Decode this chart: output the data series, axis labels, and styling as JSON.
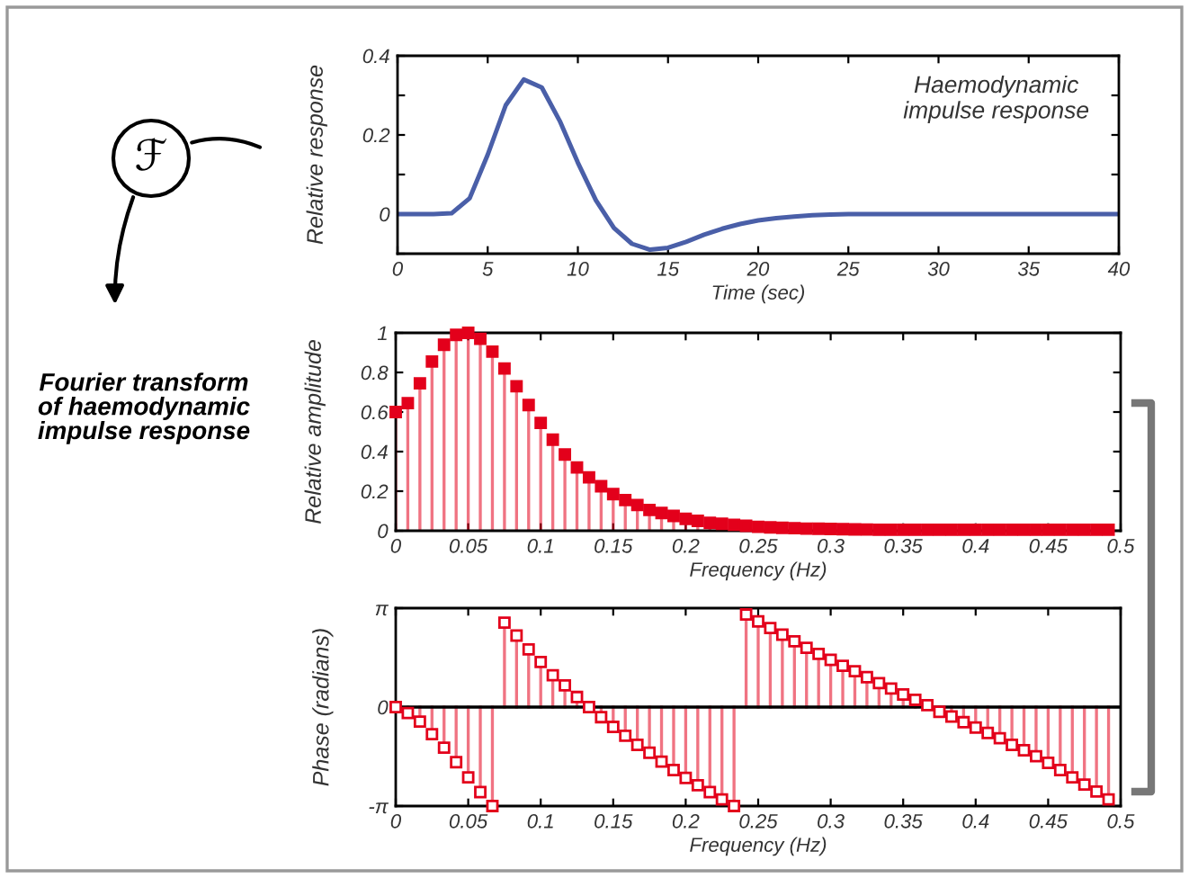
{
  "chart_data": [
    {
      "type": "line",
      "xlabel": "Time (sec)",
      "ylabel": "Relative response",
      "x": [
        0,
        1,
        2,
        3,
        4,
        5,
        6,
        7,
        8,
        9,
        10,
        11,
        12,
        13,
        14,
        15,
        16,
        17,
        18,
        19,
        20,
        21,
        22,
        23,
        24,
        25,
        26,
        28,
        30,
        32,
        34,
        36,
        38,
        40
      ],
      "series": [
        {
          "color": "#4a5fa8",
          "values": [
            0,
            0,
            0,
            0.002,
            0.04,
            0.15,
            0.275,
            0.34,
            0.32,
            0.235,
            0.13,
            0.035,
            -0.035,
            -0.075,
            -0.09,
            -0.085,
            -0.07,
            -0.052,
            -0.037,
            -0.025,
            -0.016,
            -0.01,
            -0.006,
            -0.003,
            -0.001,
            0,
            0,
            0,
            0,
            0,
            0,
            0,
            0,
            0
          ]
        }
      ],
      "xlim": [
        0,
        40
      ],
      "xticks": [
        0,
        5,
        10,
        15,
        20,
        25,
        30,
        35,
        40
      ],
      "ylim": [
        -0.1,
        0.4
      ],
      "yticks": [
        {
          "value": -0.1,
          "label": null
        },
        0,
        {
          "value": 0.1,
          "label": null
        },
        0.2,
        {
          "value": 0.3,
          "label": null
        },
        0.4
      ],
      "annotations": [
        "Haemodynamic\nimpulse response"
      ],
      "grid": false,
      "legend": false,
      "marker": "none",
      "line_style": "solid"
    },
    {
      "type": "lollipop",
      "xlabel": "Frequency (Hz)",
      "ylabel": "Relative amplitude",
      "x": [
        0,
        0.00833,
        0.01667,
        0.025,
        0.03333,
        0.04167,
        0.05,
        0.05833,
        0.06667,
        0.075,
        0.08333,
        0.09167,
        0.1,
        0.10833,
        0.11667,
        0.125,
        0.13333,
        0.14167,
        0.15,
        0.15833,
        0.16667,
        0.175,
        0.18333,
        0.19167,
        0.2,
        0.20833,
        0.21667,
        0.225,
        0.23333,
        0.24167,
        0.25,
        0.25833,
        0.26667,
        0.275,
        0.28333,
        0.29167,
        0.3,
        0.30833,
        0.31667,
        0.325,
        0.33333,
        0.34167,
        0.35,
        0.35833,
        0.36667,
        0.375,
        0.38333,
        0.39167,
        0.4,
        0.40833,
        0.41667,
        0.425,
        0.43333,
        0.44167,
        0.45,
        0.45833,
        0.46667,
        0.475,
        0.48333,
        0.49167
      ],
      "series": [
        {
          "color": "#e3001b",
          "values": [
            0.6,
            0.645,
            0.745,
            0.855,
            0.94,
            0.99,
            1.0,
            0.97,
            0.905,
            0.82,
            0.73,
            0.635,
            0.545,
            0.46,
            0.385,
            0.32,
            0.27,
            0.225,
            0.185,
            0.155,
            0.13,
            0.105,
            0.09,
            0.075,
            0.06,
            0.05,
            0.04,
            0.035,
            0.03,
            0.025,
            0.02,
            0.017,
            0.015,
            0.013,
            0.011,
            0.01,
            0.009,
            0.008,
            0.007,
            0.006,
            0.005,
            0.005,
            0.005,
            0.005,
            0.005,
            0.005,
            0.005,
            0.005,
            0.005,
            0.005,
            0.005,
            0.005,
            0.005,
            0.005,
            0.005,
            0.005,
            0.005,
            0.005,
            0.005,
            0.005
          ]
        }
      ],
      "xlim": [
        0,
        0.5
      ],
      "xticks": [
        0,
        0.05,
        0.1,
        0.15,
        0.2,
        0.25,
        0.3,
        0.35,
        0.4,
        0.45,
        0.5
      ],
      "ylim": [
        0,
        1
      ],
      "yticks": [
        0,
        0.2,
        0.4,
        0.6,
        0.8,
        1
      ],
      "annotations": [
        "ℱ",
        "Fourier transform\nof haemodynamic\nimpulse response"
      ],
      "grid": false,
      "legend": false,
      "marker": "square"
    },
    {
      "type": "lollipop",
      "xlabel": "Frequency (Hz)",
      "ylabel": "Phase (radians)",
      "x": [
        0,
        0.00833,
        0.01667,
        0.025,
        0.03333,
        0.04167,
        0.05,
        0.05833,
        0.06667,
        0.075,
        0.08333,
        0.09167,
        0.1,
        0.10833,
        0.11667,
        0.125,
        0.13333,
        0.14167,
        0.15,
        0.15833,
        0.16667,
        0.175,
        0.18333,
        0.19167,
        0.2,
        0.20833,
        0.21667,
        0.225,
        0.23333,
        0.24167,
        0.25,
        0.25833,
        0.26667,
        0.275,
        0.28333,
        0.29167,
        0.3,
        0.30833,
        0.31667,
        0.325,
        0.33333,
        0.34167,
        0.35,
        0.35833,
        0.36667,
        0.375,
        0.38333,
        0.39167,
        0.4,
        0.40833,
        0.41667,
        0.425,
        0.43333,
        0.44167,
        0.45,
        0.45833,
        0.46667,
        0.475,
        0.48333,
        0.49167
      ],
      "series": [
        {
          "color": "#e3001b",
          "values": [
            0,
            -0.19,
            -0.46,
            -0.86,
            -1.29,
            -1.75,
            -2.23,
            -2.7,
            -3.14,
            2.68,
            2.27,
            1.83,
            1.43,
            1.01,
            0.69,
            0.32,
            0,
            -0.32,
            -0.63,
            -0.91,
            -1.2,
            -1.45,
            -1.73,
            -2.0,
            -2.25,
            -2.48,
            -2.7,
            -2.93,
            -3.14,
            2.94,
            2.72,
            2.51,
            2.3,
            2.09,
            1.88,
            1.69,
            1.5,
            1.31,
            1.14,
            0.95,
            0.76,
            0.59,
            0.4,
            0.23,
            0.06,
            -0.15,
            -0.3,
            -0.48,
            -0.65,
            -0.82,
            -0.99,
            -1.2,
            -1.37,
            -1.56,
            -1.77,
            -2.0,
            -2.23,
            -2.46,
            -2.68,
            -2.93
          ]
        }
      ],
      "xlim": [
        0,
        0.5
      ],
      "xticks": [
        0,
        0.05,
        0.1,
        0.15,
        0.2,
        0.25,
        0.3,
        0.35,
        0.4,
        0.45,
        0.5
      ],
      "ylim": [
        -3.14159,
        3.14159
      ],
      "yticks": [
        {
          "value": -3.14159,
          "label": "-π"
        },
        0,
        {
          "value": 3.14159,
          "label": "π"
        }
      ],
      "ref_lines": [
        {
          "axis": "y",
          "value": 0,
          "color": "#000000"
        }
      ],
      "grid": false,
      "legend": false,
      "marker": "square"
    }
  ]
}
